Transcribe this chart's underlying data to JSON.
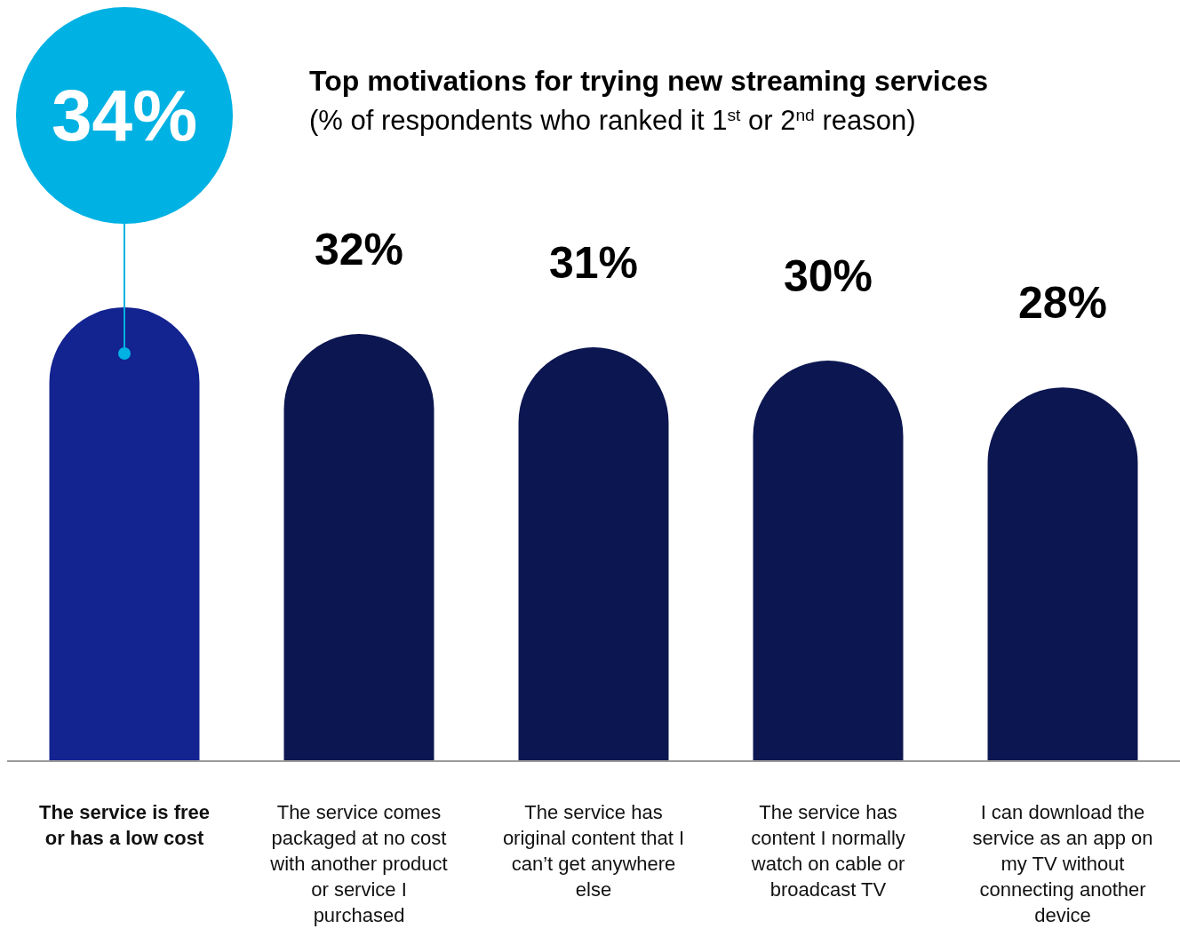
{
  "chart_data": {
    "type": "bar",
    "title": "Top motivations for trying new streaming services",
    "subtitle": "(% of respondents who ranked it 1$^{st}$ or 2$^{nd}$ reason)",
    "categories": [
      "The service is free or has a low cost",
      "The service comes packaged at no cost with another product or service I purchased",
      "The service has original content that I can’t get anywhere else",
      "The service has content I normally watch on cable or broadcast TV",
      "I can download the service as an app on my TV without connecting another device"
    ],
    "values": [
      34,
      32,
      31,
      30,
      28
    ],
    "value_labels": [
      "34%",
      "32%",
      "31%",
      "30%",
      "28%"
    ],
    "colors": [
      "#13238f",
      "#0c1650",
      "#0c1650",
      "#0c1650",
      "#0c1650"
    ]
  }
}
